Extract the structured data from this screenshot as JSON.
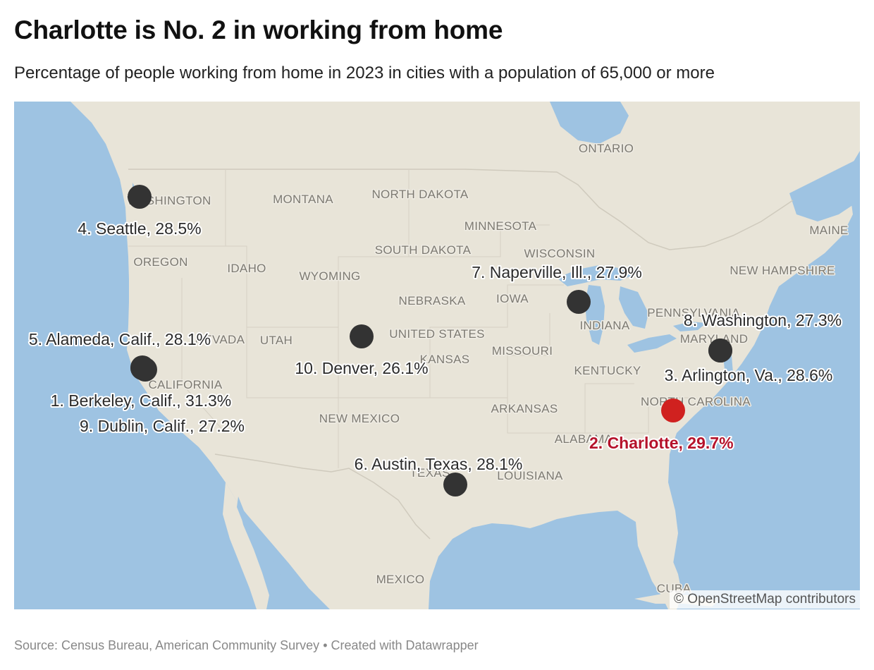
{
  "header": {
    "title": "Charlotte is No. 2 in working from home",
    "subtitle": "Percentage of people working from home in 2023 in cities with a population of 65,000 or more"
  },
  "map": {
    "region_labels": [
      {
        "id": "ontario",
        "text": "ONTARIO"
      },
      {
        "id": "washington",
        "text": "WASHINGTON"
      },
      {
        "id": "montana",
        "text": "MONTANA"
      },
      {
        "id": "north-dakota",
        "text": "NORTH DAKOTA"
      },
      {
        "id": "minnesota",
        "text": "MINNESOTA"
      },
      {
        "id": "maine",
        "text": "MAINE"
      },
      {
        "id": "south-dakota",
        "text": "SOUTH DAKOTA"
      },
      {
        "id": "wisconsin",
        "text": "WISCONSIN"
      },
      {
        "id": "oregon",
        "text": "OREGON"
      },
      {
        "id": "idaho",
        "text": "IDAHO"
      },
      {
        "id": "wyoming",
        "text": "WYOMING"
      },
      {
        "id": "new-hampshire",
        "text": "NEW HAMPSHIRE"
      },
      {
        "id": "nebraska",
        "text": "NEBRASKA"
      },
      {
        "id": "iowa",
        "text": "IOWA"
      },
      {
        "id": "pennsylvania",
        "text": "PENNSYLVANIA"
      },
      {
        "id": "indiana",
        "text": "INDIANA"
      },
      {
        "id": "nevada",
        "text": "NEVADA"
      },
      {
        "id": "utah",
        "text": "UTAH"
      },
      {
        "id": "united-states",
        "text": "UNITED STATES"
      },
      {
        "id": "kansas",
        "text": "KANSAS"
      },
      {
        "id": "missouri",
        "text": "MISSOURI"
      },
      {
        "id": "maryland",
        "text": "MARYLAND"
      },
      {
        "id": "kentucky",
        "text": "KENTUCKY"
      },
      {
        "id": "california",
        "text": "CALIFORNIA"
      },
      {
        "id": "north-carolina",
        "text": "NORTH CAROLINA"
      },
      {
        "id": "arkansas",
        "text": "ARKANSAS"
      },
      {
        "id": "new-mexico",
        "text": "NEW MEXICO"
      },
      {
        "id": "alabama",
        "text": "ALABAMA"
      },
      {
        "id": "texas",
        "text": "TEXAS"
      },
      {
        "id": "louisiana",
        "text": "LOUISIANA"
      },
      {
        "id": "mexico",
        "text": "MEXICO"
      },
      {
        "id": "cuba",
        "text": "CUBA"
      }
    ],
    "markers": [
      {
        "rank": 1,
        "label": "1. Berkeley, Calif., 31.3%",
        "value": 31.3,
        "highlight": false
      },
      {
        "rank": 2,
        "label": "2. Charlotte, 29.7%",
        "value": 29.7,
        "highlight": true
      },
      {
        "rank": 3,
        "label": "3. Arlington, Va., 28.6%",
        "value": 28.6,
        "highlight": false
      },
      {
        "rank": 4,
        "label": "4. Seattle, 28.5%",
        "value": 28.5,
        "highlight": false
      },
      {
        "rank": 5,
        "label": "5. Alameda, Calif., 28.1%",
        "value": 28.1,
        "highlight": false
      },
      {
        "rank": 6,
        "label": "6. Austin, Texas, 28.1%",
        "value": 28.1,
        "highlight": false
      },
      {
        "rank": 7,
        "label": "7. Naperville, Ill., 27.9%",
        "value": 27.9,
        "highlight": false
      },
      {
        "rank": 8,
        "label": "8. Washington, 27.3%",
        "value": 27.3,
        "highlight": false
      },
      {
        "rank": 9,
        "label": "9. Dublin, Calif., 27.2%",
        "value": 27.2,
        "highlight": false
      },
      {
        "rank": 10,
        "label": "10. Denver, 26.1%",
        "value": 26.1,
        "highlight": false
      }
    ],
    "colors": {
      "water": "#9ec3e2",
      "land": "#e8e4d8",
      "border": "#cfcabd",
      "marker": "#333333",
      "highlight_marker": "#d0211f",
      "highlight_text": "#b5122b"
    },
    "attribution": "© OpenStreetMap contributors"
  },
  "footer": {
    "source": "Source: Census Bureau, American Community Survey • Created with Datawrapper"
  }
}
